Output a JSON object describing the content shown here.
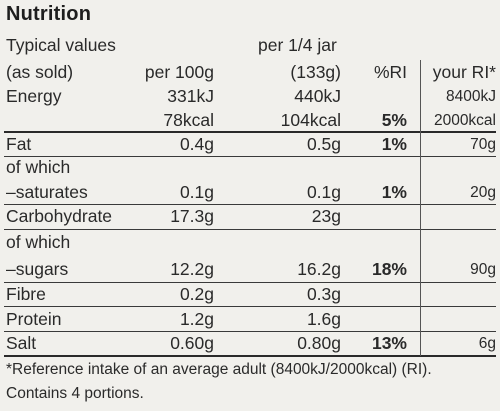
{
  "title": "Nutrition",
  "header": {
    "typical_values": "Typical values",
    "as_sold": "(as sold)",
    "per100g": "per 100g",
    "per_quarter_jar": "per 1/4 jar",
    "per_quarter_jar_g": "(133g)",
    "ri_pct": "%RI",
    "your_ri": "your RI*"
  },
  "energy": {
    "label": "Energy",
    "kj_100g": "331kJ",
    "kj_portion": "440kJ",
    "kj_ri": "8400kJ",
    "kcal_100g": "78kcal",
    "kcal_portion": "104kcal",
    "ri_pct": "5%",
    "kcal_ri": "2000kcal"
  },
  "rows": [
    {
      "label": "Fat",
      "per100g": "0.4g",
      "portion": "0.5g",
      "ri_pct": "1%",
      "ri": "70g"
    },
    {
      "label_line1": "of which",
      "label": "–saturates",
      "per100g": "0.1g",
      "portion": "0.1g",
      "ri_pct": "1%",
      "ri": "20g"
    },
    {
      "label": "Carbohydrate",
      "per100g": "17.3g",
      "portion": "23g",
      "ri_pct": "",
      "ri": ""
    },
    {
      "label_line1": "of which",
      "label": "–sugars",
      "per100g": "12.2g",
      "portion": "16.2g",
      "ri_pct": "18%",
      "ri": "90g"
    },
    {
      "label": "Fibre",
      "per100g": "0.2g",
      "portion": "0.3g",
      "ri_pct": "",
      "ri": ""
    },
    {
      "label": "Protein",
      "per100g": "1.2g",
      "portion": "1.6g",
      "ri_pct": "",
      "ri": ""
    },
    {
      "label": "Salt",
      "per100g": "0.60g",
      "portion": "0.80g",
      "ri_pct": "13%",
      "ri": "6g"
    }
  ],
  "footnote": "*Reference intake of an average adult (8400kJ/2000kcal) (RI).",
  "portions": "Contains 4 portions."
}
